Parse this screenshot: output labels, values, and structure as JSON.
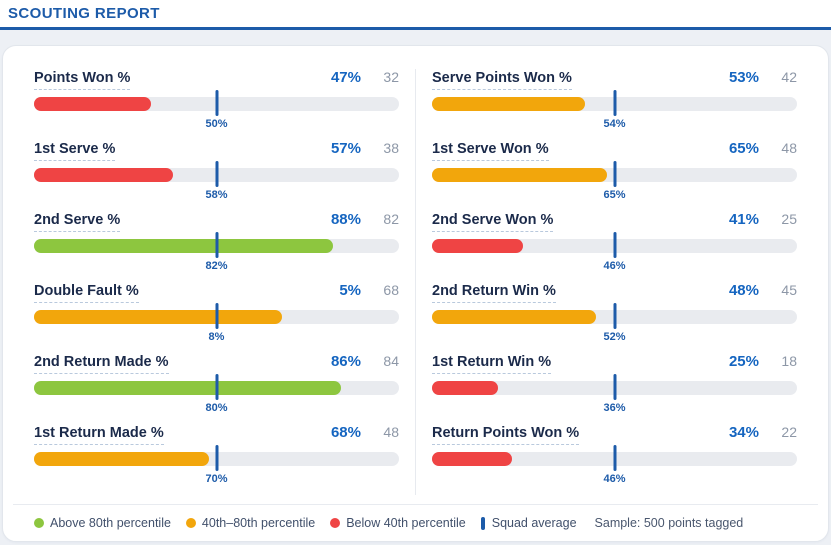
{
  "header": {
    "title": "SCOUTING REPORT"
  },
  "columns": {
    "left": [
      {
        "label": "Points Won %",
        "value": "47%",
        "percentile": 32,
        "squad_avg": "50%"
      },
      {
        "label": "1st Serve %",
        "value": "57%",
        "percentile": 38,
        "squad_avg": "58%"
      },
      {
        "label": "2nd Serve %",
        "value": "88%",
        "percentile": 82,
        "squad_avg": "82%"
      },
      {
        "label": "Double Fault %",
        "value": "5%",
        "percentile": 68,
        "squad_avg": "8%"
      },
      {
        "label": "2nd Return Made %",
        "value": "86%",
        "percentile": 84,
        "squad_avg": "80%"
      },
      {
        "label": "1st Return Made %",
        "value": "68%",
        "percentile": 48,
        "squad_avg": "70%"
      }
    ],
    "right": [
      {
        "label": "Serve Points Won %",
        "value": "53%",
        "percentile": 42,
        "squad_avg": "54%"
      },
      {
        "label": "1st Serve Won %",
        "value": "65%",
        "percentile": 48,
        "squad_avg": "65%"
      },
      {
        "label": "2nd Serve Won %",
        "value": "41%",
        "percentile": 25,
        "squad_avg": "46%"
      },
      {
        "label": "2nd Return Win %",
        "value": "48%",
        "percentile": 45,
        "squad_avg": "52%"
      },
      {
        "label": "1st Return Win %",
        "value": "25%",
        "percentile": 18,
        "squad_avg": "36%"
      },
      {
        "label": "Return Points Won %",
        "value": "34%",
        "percentile": 22,
        "squad_avg": "46%"
      }
    ]
  },
  "legend": {
    "green": "Above 80th percentile",
    "orange": "40th–80th percentile",
    "red": "Below 40th percentile",
    "squad": "Squad average",
    "sample": "Sample: 500 points tagged"
  },
  "colors": {
    "accent_blue": "#1d5ba9",
    "value_blue": "#1565c0",
    "green": "#8dc63f",
    "orange": "#f2a60c",
    "red": "#ef4444",
    "track": "#e9ebef"
  },
  "percentile_thresholds": {
    "green_min": 80,
    "orange_min": 40
  },
  "chart_data": {
    "type": "bar",
    "title": "SCOUTING REPORT",
    "encoding": "Bar length = squad percentile (0-100); colored by percentile band; center tick marks squad average value",
    "categories": [
      "Points Won %",
      "1st Serve %",
      "2nd Serve %",
      "Double Fault %",
      "2nd Return Made %",
      "1st Return Made %",
      "Serve Points Won %",
      "1st Serve Won %",
      "2nd Serve Won %",
      "2nd Return Win %",
      "1st Return Win %",
      "Return Points Won %"
    ],
    "series": [
      {
        "name": "value_pct",
        "values": [
          47,
          57,
          88,
          5,
          86,
          68,
          53,
          65,
          41,
          48,
          25,
          34
        ]
      },
      {
        "name": "percentile",
        "values": [
          32,
          38,
          82,
          68,
          84,
          48,
          42,
          48,
          25,
          45,
          18,
          22
        ]
      },
      {
        "name": "squad_avg_pct",
        "values": [
          50,
          58,
          82,
          8,
          80,
          70,
          54,
          65,
          46,
          52,
          36,
          46
        ]
      }
    ],
    "xlim": [
      0,
      100
    ],
    "legend_entries": [
      "Above 80th percentile",
      "40th–80th percentile",
      "Below 40th percentile",
      "Squad average"
    ],
    "legend_position": "bottom",
    "annotation": "Sample: 500 points tagged"
  }
}
